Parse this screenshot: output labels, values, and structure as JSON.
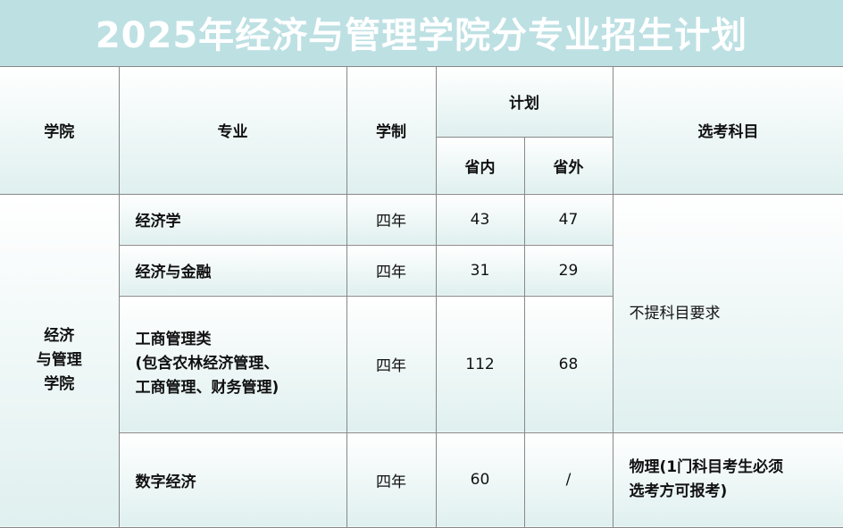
{
  "title": "2025年经济与管理学院分专业招生计划",
  "headers": {
    "college": "学院",
    "major": "专业",
    "duration": "学制",
    "plan": "计划",
    "in_province": "省内",
    "out_province": "省外",
    "subjects": "选考科目"
  },
  "college": "经济\n与管理\n学院",
  "rows": [
    {
      "major": "经济学",
      "duration": "四年",
      "in": "43",
      "out": "47"
    },
    {
      "major": "经济与金融",
      "duration": "四年",
      "in": "31",
      "out": "29"
    },
    {
      "major": "工商管理类\n(包含农林经济管理、\n工商管理、财务管理)",
      "duration": "四年",
      "in": "112",
      "out": "68"
    },
    {
      "major": "数字经济",
      "duration": "四年",
      "in": "60",
      "out": "/"
    }
  ],
  "subjects": {
    "group1": "不提科目要求",
    "group2": "物理(1门科目考生必须\n选考方可报考)"
  },
  "colors": {
    "title_bg": "#bde0e3",
    "border": "#888888"
  }
}
